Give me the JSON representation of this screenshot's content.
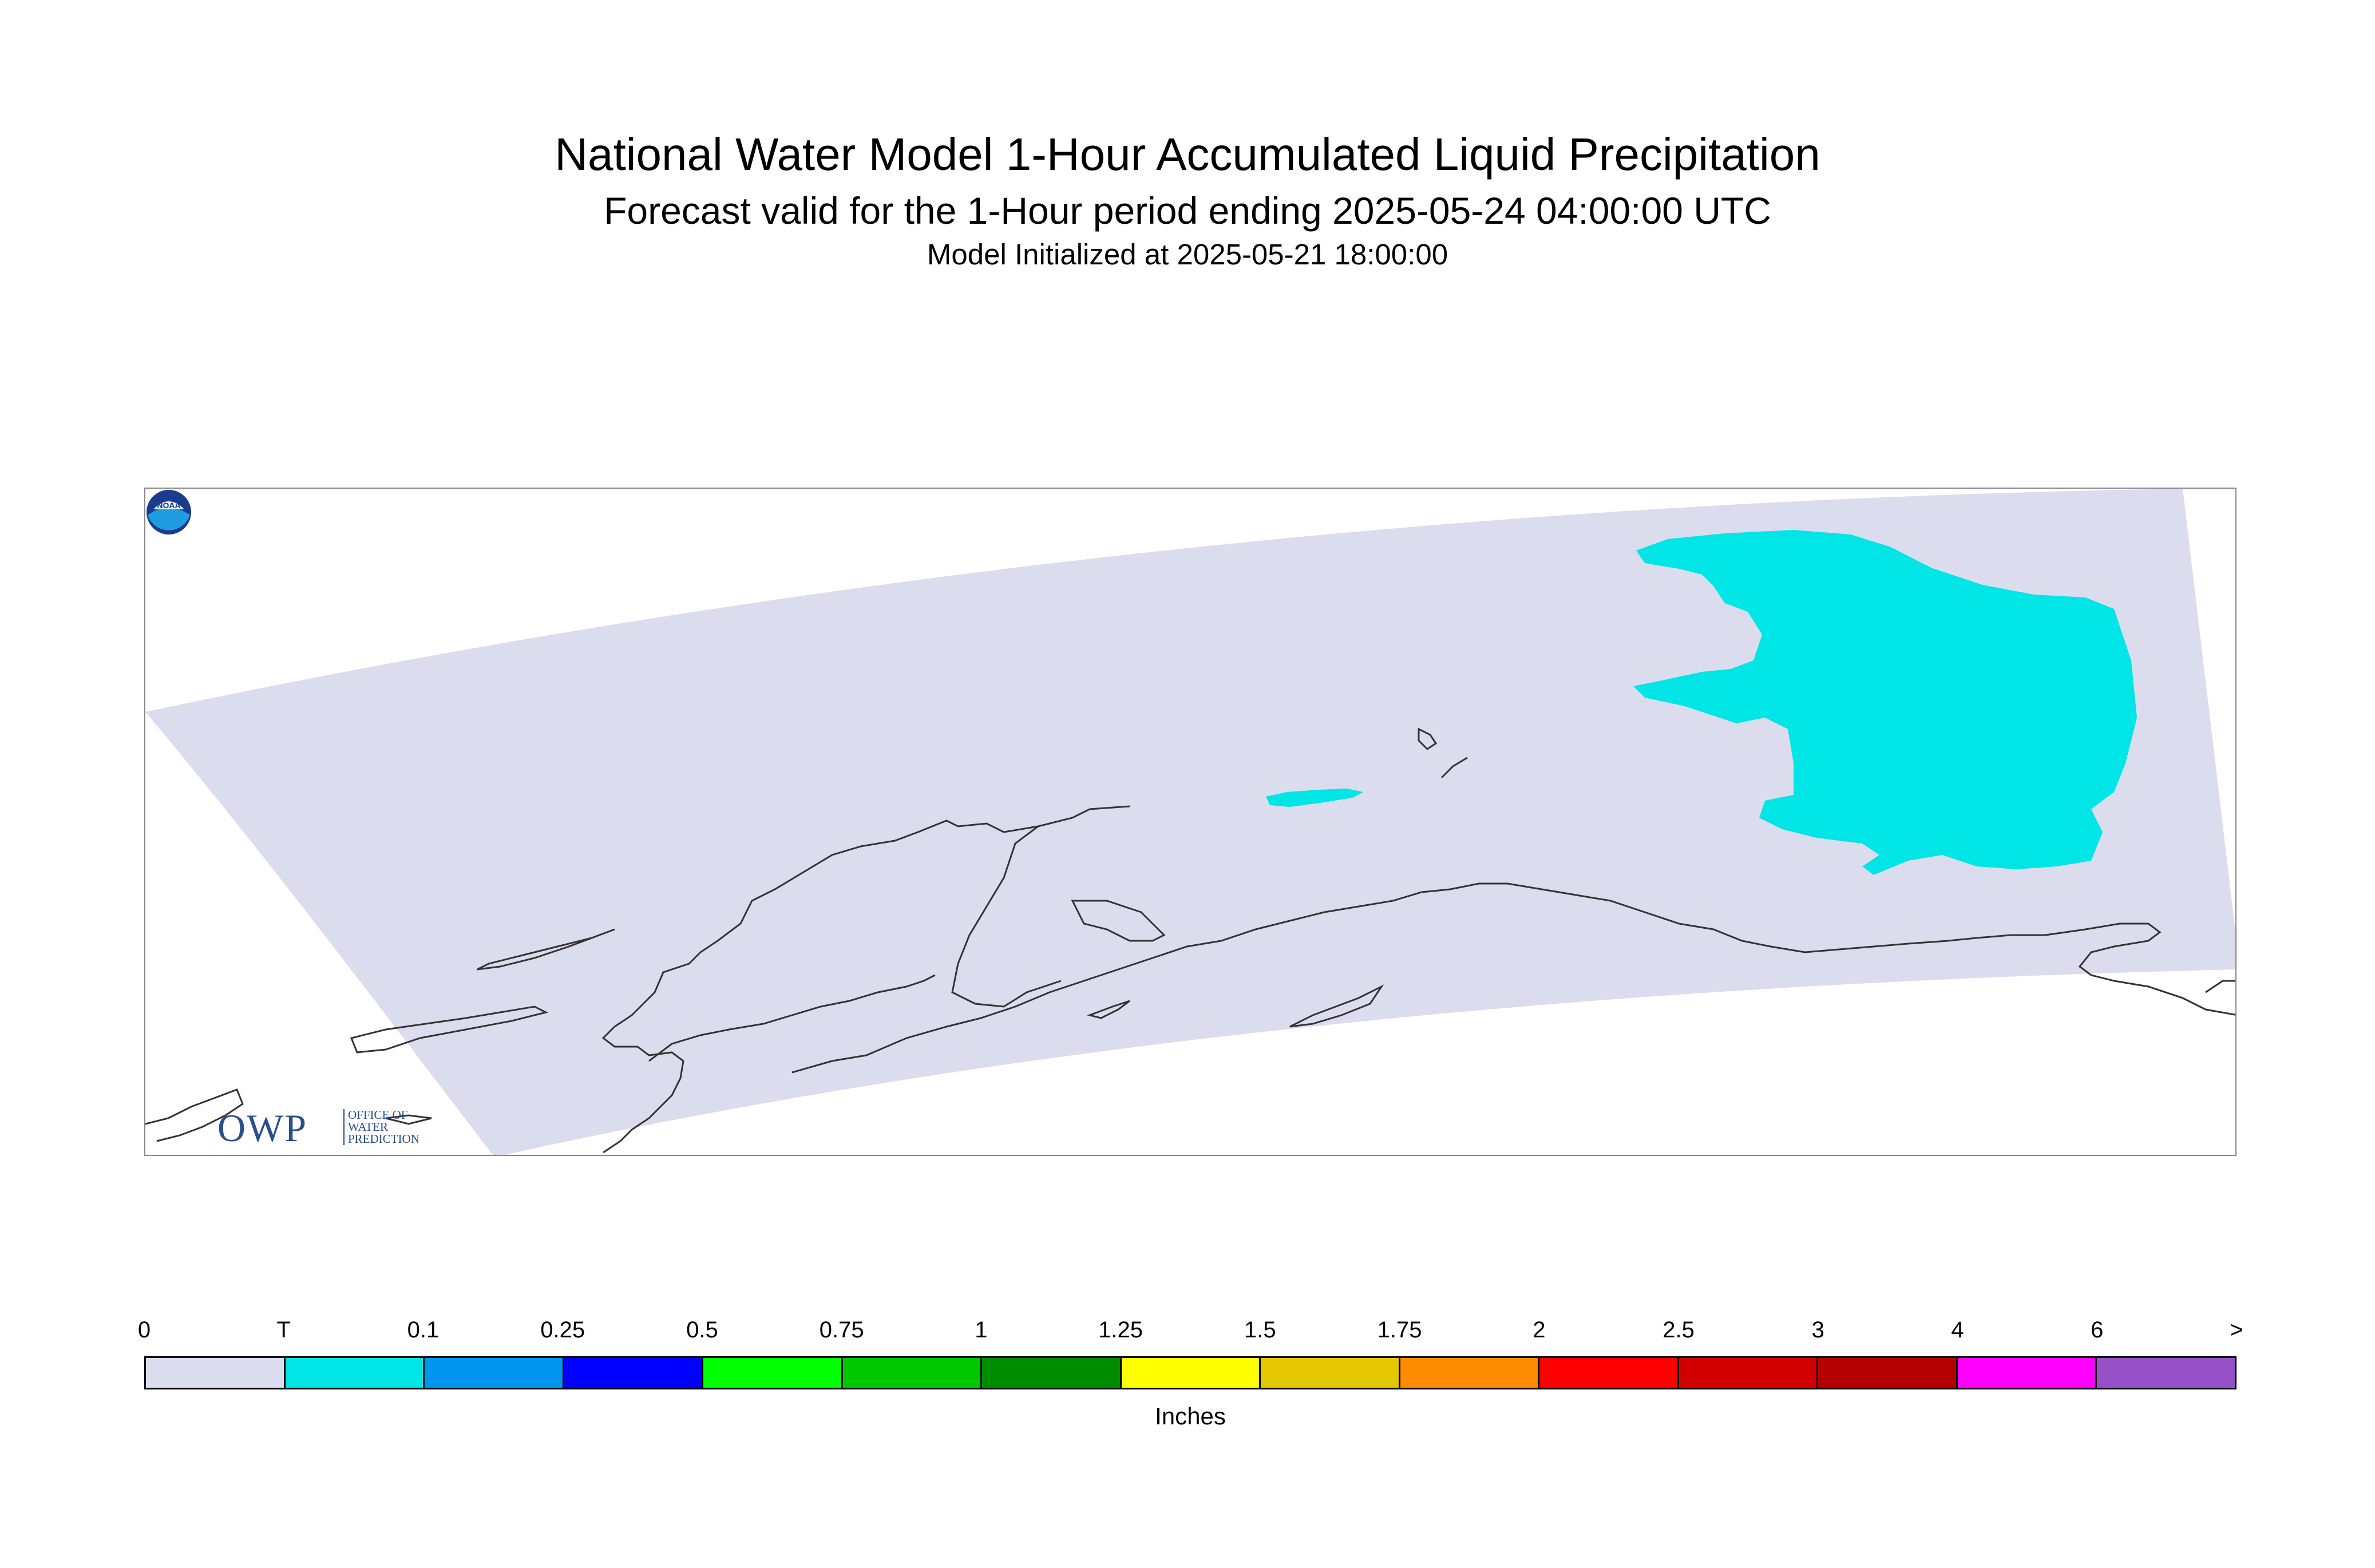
{
  "header": {
    "title": "National Water Model 1-Hour Accumulated Liquid Precipitation",
    "subtitle": "Forecast valid for the 1-Hour period ending 2025-05-24 04:00:00 UTC",
    "init_line": "Model Initialized at 2025-05-21 18:00:00"
  },
  "map": {
    "domain_fill_color": "#dcdcef",
    "precip_fill_color": "#00e5e5",
    "coastline_color": "#333333",
    "precip_category": "T"
  },
  "logos": {
    "owp": {
      "letters": "OWP",
      "line1": "OFFICE OF",
      "line2": "WATER",
      "line3": "PREDICTION"
    },
    "noaa": {
      "text": "NOAA"
    }
  },
  "legend": {
    "units": "Inches",
    "tick_labels": [
      "0",
      "T",
      "0.1",
      "0.25",
      "0.5",
      "0.75",
      "1",
      "1.25",
      "1.5",
      "1.75",
      "2",
      "2.5",
      "3",
      "4",
      "6",
      ">"
    ],
    "colors": [
      "#dcdcef",
      "#00e5e5",
      "#0096f0",
      "#0000ff",
      "#00ff00",
      "#00c800",
      "#008c00",
      "#ffff00",
      "#e6c800",
      "#ff8c00",
      "#ff0000",
      "#d20000",
      "#b40000",
      "#ff00ff",
      "#9650c8"
    ]
  }
}
